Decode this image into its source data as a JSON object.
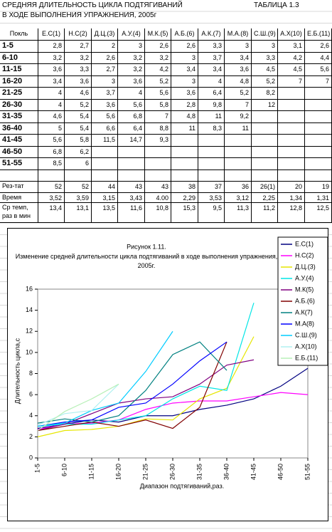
{
  "header": {
    "title_line1": "СРЕДНЯЯ ДЛИТЕЛЬНОСТЬ ЦИКЛА ПОДТЯГИВАНИЙ",
    "title_line2": "В ХОДЕ ВЫПОЛНЕНИЯ УПРАЖНЕНИЯ, 2005г",
    "table_label": "ТАБЛИЦА 1.3"
  },
  "table": {
    "columns": [
      "Покль",
      "Е.С(1)",
      "Н.С(2)",
      "Д.Ц.(3)",
      "А.У.(4)",
      "М.К.(5)",
      "А.Б.(6)",
      "А.К.(7)",
      "М.А.(8)",
      "С.Ш.(9)",
      "А.Х(10)",
      "Е.Б.(11)"
    ],
    "rows": [
      [
        "1-5",
        "2,8",
        "2,7",
        "2",
        "3",
        "2,6",
        "2,6",
        "3,3",
        "3",
        "3",
        "3,1",
        "2,6"
      ],
      [
        "6-10",
        "3,2",
        "3,2",
        "2,6",
        "3,2",
        "3,2",
        "3",
        "3,7",
        "3,4",
        "3,3",
        "4,2",
        "4,4"
      ],
      [
        "11-15",
        "3,6",
        "3,3",
        "2,7",
        "3,2",
        "4,2",
        "3,4",
        "3,4",
        "3,6",
        "4,5",
        "4,5",
        "5,6"
      ],
      [
        "16-20",
        "3,4",
        "3,6",
        "3",
        "3,6",
        "5,2",
        "3",
        "4",
        "4,8",
        "5,2",
        "7",
        "7"
      ],
      [
        "21-25",
        "4",
        "4,6",
        "3,7",
        "4",
        "5,6",
        "3,6",
        "6,4",
        "5,2",
        "8,2"
      ],
      [
        "26-30",
        "4",
        "5,2",
        "3,6",
        "5,6",
        "5,8",
        "2,8",
        "9,8",
        "7",
        "12"
      ],
      [
        "31-35",
        "4,6",
        "5,4",
        "5,6",
        "6,8",
        "7",
        "4,8",
        "11",
        "9,2"
      ],
      [
        "36-40",
        "5",
        "5,4",
        "6,6",
        "6,4",
        "8,8",
        "11",
        "8,3",
        "11"
      ],
      [
        "41-45",
        "5,6",
        "5,8",
        "11,5",
        "14,7",
        "9,3"
      ],
      [
        "46-50",
        "6,8",
        "6,2"
      ],
      [
        "51-55",
        "8,5",
        "6"
      ]
    ],
    "summary": [
      [
        "Рез-тат",
        "52",
        "52",
        "44",
        "43",
        "43",
        "38",
        "37",
        "36",
        "26(1)",
        "20",
        "19"
      ],
      [
        "Время",
        "3,52",
        "3,59",
        "3,15",
        "3,43",
        "4.00",
        "2,29",
        "3,53",
        "3,12",
        "2,25",
        "1,34",
        "1,31"
      ],
      [
        "Ср темп, раз в мин",
        "13,4",
        "13,1",
        "13,5",
        "11,6",
        "10,8",
        "15,3",
        "9,5",
        "11,3",
        "11,2",
        "12,8",
        "12,5"
      ]
    ]
  },
  "chart_data": {
    "type": "line",
    "title": "Рисунок 1.11.",
    "subtitle": "Изменение средней длительности цикла подтягиваний в ходе выполнения упражнения, 2005г.",
    "x_label": "Диапазон подтягиваний,раз.",
    "y_label": "Длительность цикла,с",
    "categories": [
      "1-5",
      "6-10",
      "11-15",
      "16-20",
      "21-25",
      "26-30",
      "31-35",
      "36-40",
      "41-45",
      "46-50",
      "51-55"
    ],
    "ylim": [
      0,
      16
    ],
    "yticks": [
      0,
      2,
      4,
      6,
      8,
      10,
      12,
      14,
      16
    ],
    "legend": "right",
    "series": [
      {
        "name": "Е.С(1)",
        "color": "#000080",
        "values": [
          2.8,
          3.2,
          3.6,
          3.4,
          4,
          4,
          4.6,
          5,
          5.6,
          6.8,
          8.5
        ]
      },
      {
        "name": "Н.С(2)",
        "color": "#ff00ff",
        "values": [
          2.7,
          3.2,
          3.3,
          3.6,
          4.6,
          5.2,
          5.4,
          5.4,
          5.8,
          6.2,
          6
        ]
      },
      {
        "name": "Д.Ц.(3)",
        "color": "#e6e600",
        "values": [
          2,
          2.6,
          2.7,
          3,
          3.7,
          3.6,
          5.6,
          6.6,
          11.5,
          null,
          null
        ]
      },
      {
        "name": "А.У.(4)",
        "color": "#00e5e5",
        "values": [
          3,
          3.2,
          3.2,
          3.6,
          4,
          5.6,
          6.8,
          6.4,
          14.7,
          null,
          null
        ]
      },
      {
        "name": "М.К(5)",
        "color": "#800080",
        "values": [
          2.6,
          3.2,
          4.2,
          5.2,
          5.6,
          5.8,
          7,
          8.8,
          9.3,
          null,
          null
        ]
      },
      {
        "name": "А.Б.(6)",
        "color": "#800000",
        "values": [
          2.6,
          3,
          3.4,
          3,
          3.6,
          2.8,
          4.8,
          11,
          null,
          null,
          null
        ]
      },
      {
        "name": "А.К(7)",
        "color": "#008080",
        "values": [
          3.3,
          3.7,
          3.4,
          4,
          6.4,
          9.8,
          11,
          8.3,
          null,
          null,
          null
        ]
      },
      {
        "name": "М.А(8)",
        "color": "#0000ff",
        "values": [
          3,
          3.4,
          3.6,
          4.8,
          5.2,
          7,
          9.2,
          11,
          null,
          null,
          null
        ]
      },
      {
        "name": "С.Ш.(9)",
        "color": "#00ccff",
        "values": [
          3,
          3.3,
          4.5,
          5.2,
          8.2,
          12,
          null,
          null,
          null,
          null,
          null
        ]
      },
      {
        "name": "А.Х(10)",
        "color": "#b0f0f0",
        "values": [
          3.1,
          4.2,
          4.5,
          7,
          null,
          null,
          null,
          null,
          null,
          null,
          null
        ]
      },
      {
        "name": "Е.Б.(11)",
        "color": "#b8f0b8",
        "values": [
          2.6,
          4.4,
          5.6,
          7,
          null,
          null,
          null,
          null,
          null,
          null,
          null
        ]
      }
    ]
  }
}
